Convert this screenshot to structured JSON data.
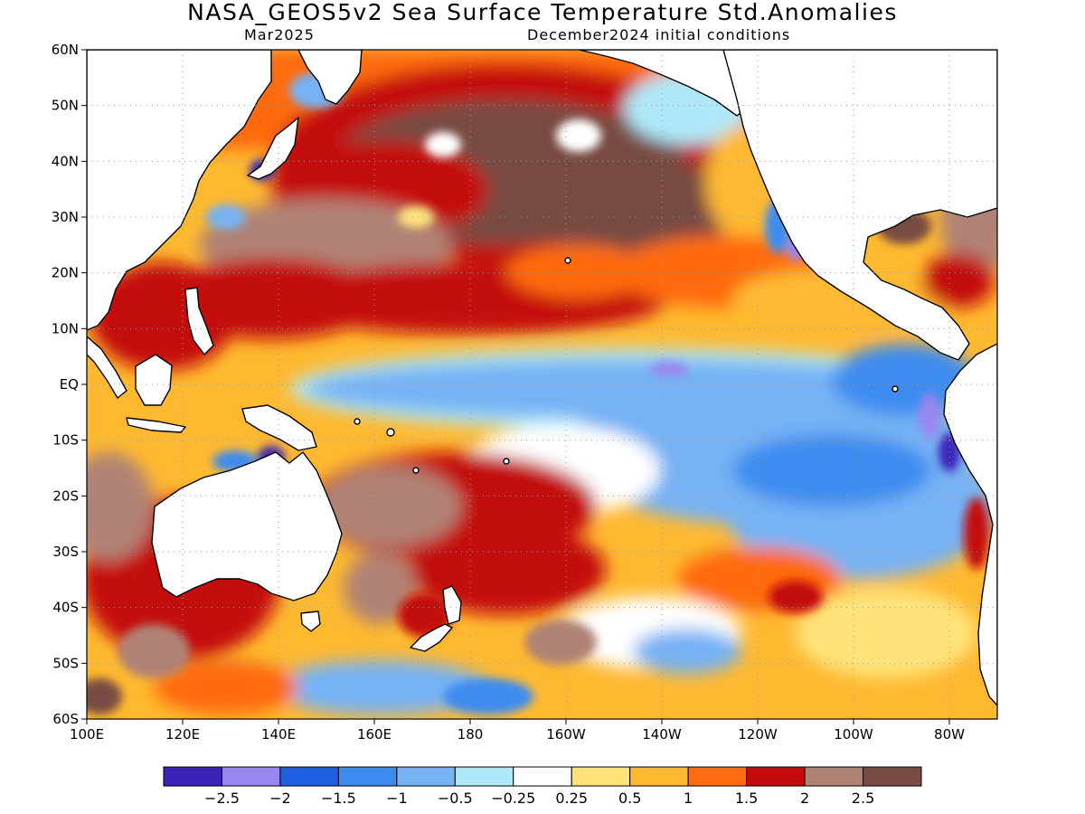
{
  "header": {
    "title": "NASA_GEOS5v2 Sea Surface Temperature Std.Anomalies",
    "subtitle_left": "Mar2025",
    "subtitle_right": "December2024 initial conditions"
  },
  "map": {
    "projection": "latitude-longitude",
    "lon_range": [
      "100E",
      "70W"
    ],
    "lat_range": [
      "60S",
      "60N"
    ],
    "grid": "dotted",
    "lat_ticks": [
      "60N",
      "50N",
      "40N",
      "30N",
      "20N",
      "10N",
      "EQ",
      "10S",
      "20S",
      "30S",
      "40S",
      "50S",
      "60S"
    ],
    "lon_ticks": [
      "100E",
      "120E",
      "140E",
      "160E",
      "180",
      "160W",
      "140W",
      "120W",
      "100W",
      "80W"
    ],
    "land_color": "#ffffff",
    "coastline_color": "#000000"
  },
  "colorbar": {
    "colors": [
      "#3a23b8",
      "#9a86f0",
      "#1e5fe0",
      "#3c8cf0",
      "#76b2f4",
      "#aee8f8",
      "#ffffff",
      "#ffe37a",
      "#ffb930",
      "#ff6b10",
      "#c40a0a",
      "#b08274",
      "#784c42"
    ],
    "labels": [
      "−2.5",
      "−2",
      "−1.5",
      "−1",
      "−0.5",
      "−0.25",
      "0.25",
      "0.5",
      "1",
      "1.5",
      "2",
      "2.5"
    ]
  }
}
